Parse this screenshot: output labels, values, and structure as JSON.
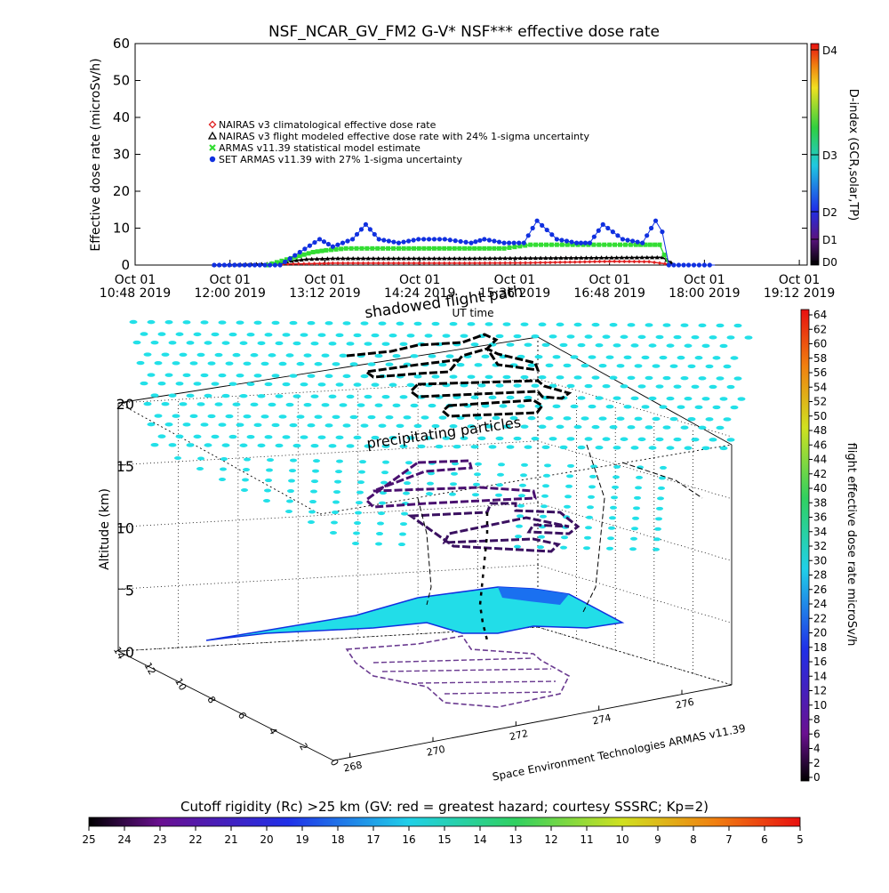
{
  "chart_data": [
    {
      "type": "scatter",
      "title": "NSF_NCAR_GV_FM2 G-V* NSF*** effective dose rate",
      "xlabel": "UT time",
      "ylabel": "Effective dose rate (microSv/h)",
      "ylim": [
        0,
        60
      ],
      "y_ticks": [
        "0",
        "10",
        "20",
        "30",
        "40",
        "50",
        "60"
      ],
      "xlim": [
        0,
        510
      ],
      "x_ticks": [
        {
          "t": 0,
          "l1": "Oct 01",
          "l2": "10:48 2019"
        },
        {
          "t": 72,
          "l1": "Oct 01",
          "l2": "12:00 2019"
        },
        {
          "t": 144,
          "l1": "Oct 01",
          "l2": "13:12 2019"
        },
        {
          "t": 216,
          "l1": "Oct 01",
          "l2": "14:24 2019"
        },
        {
          "t": 288,
          "l1": "Oct 01",
          "l2": "15:36 2019"
        },
        {
          "t": 360,
          "l1": "Oct 01",
          "l2": "16:48 2019"
        },
        {
          "t": 432,
          "l1": "Oct 01",
          "l2": "18:00 2019"
        },
        {
          "t": 504,
          "l1": "Oct 01",
          "l2": "19:12 2019"
        }
      ],
      "legend": [
        {
          "name": "NAIRAS v3 climatological effective dose rate",
          "color": "#e02020",
          "marker": "diamond"
        },
        {
          "name": "NAIRAS v3 flight modeled effective dose rate with 24% 1-sigma uncertainty",
          "color": "#000000",
          "marker": "triangle"
        },
        {
          "name": "ARMAS v11.39 statistical model estimate",
          "color": "#33dd33",
          "marker": "x"
        },
        {
          "name": "SET ARMAS v11.39 with 27% 1-sigma uncertainty",
          "color": "#1030e0",
          "marker": "dot"
        }
      ],
      "series": [
        {
          "name": "NAIRAS v3 climatological effective dose rate",
          "x": [
            60,
            120,
            140,
            150,
            200,
            250,
            300,
            330,
            360,
            390,
            410
          ],
          "y": [
            0,
            0.3,
            0.4,
            0.5,
            0.5,
            0.5,
            0.6,
            0.8,
            1.0,
            0.9,
            0
          ]
        },
        {
          "name": "NAIRAS v3 flight modeled effective dose rate with 24% 1-sigma uncertainty",
          "x": [
            60,
            100,
            115,
            130,
            150,
            200,
            250,
            300,
            350,
            400,
            410
          ],
          "y": [
            0,
            0.3,
            1.0,
            1.6,
            1.8,
            1.8,
            1.8,
            1.9,
            2.0,
            2.1,
            0
          ]
        },
        {
          "name": "ARMAS v11.39 statistical model estimate",
          "x": [
            100,
            115,
            125,
            135,
            145,
            160,
            200,
            250,
            280,
            300,
            340,
            380,
            398,
            405
          ],
          "y": [
            0,
            1.5,
            2.5,
            3.5,
            4.0,
            4.5,
            4.5,
            4.5,
            4.5,
            5.5,
            5.5,
            5.5,
            5.5,
            0
          ]
        },
        {
          "name": "SET ARMAS v11.39 with 27% 1-sigma uncertainty",
          "x": [
            60,
            110,
            140,
            150,
            165,
            175,
            185,
            200,
            215,
            235,
            255,
            265,
            280,
            295,
            305,
            320,
            335,
            345,
            355,
            370,
            385,
            395,
            400,
            405,
            420,
            440
          ],
          "y": [
            0,
            0,
            7,
            5,
            7,
            11,
            7,
            6,
            7,
            7,
            6,
            7,
            6,
            6,
            12,
            7,
            6,
            6,
            11,
            7,
            6,
            12,
            9,
            0,
            0,
            0
          ]
        }
      ],
      "right_axis": {
        "label": "D-index (GCR,solar,TP)",
        "ticks": [
          "D0",
          "D1",
          "D2",
          "D3",
          "D4"
        ]
      }
    },
    {
      "type": "heatmap",
      "title": "",
      "subtitle": "shadowed flight path",
      "annotations": [
        "precipitating particles",
        "Space Environment Technologies ARMAS v11.39"
      ],
      "zlabel": "Altitude (km)",
      "z_ticks": [
        "0",
        "5",
        "10",
        "15",
        "20"
      ],
      "x_ticks": [
        "268",
        "270",
        "272",
        "274",
        "276"
      ],
      "y_ticks": [
        "0",
        "2",
        "4",
        "6",
        "8",
        "10",
        "12",
        "14"
      ],
      "colorbar_right": {
        "label": "flight effective dose rate microSv/h",
        "ticks": [
          "0",
          "2",
          "4",
          "6",
          "8",
          "10",
          "12",
          "14",
          "16",
          "18",
          "20",
          "22",
          "24",
          "26",
          "28",
          "30",
          "32",
          "34",
          "36",
          "38",
          "40",
          "42",
          "44",
          "46",
          "48",
          "50",
          "52",
          "54",
          "56",
          "58",
          "60",
          "62",
          "64"
        ]
      },
      "colorbar_bottom": {
        "label": "Cutoff rigidity (Rc) >25 km (GV: red = greatest hazard; courtesy SSSRC; Kp=2)",
        "ticks": [
          "25",
          "24",
          "23",
          "22",
          "21",
          "20",
          "19",
          "18",
          "17",
          "16",
          "15",
          "14",
          "13",
          "12",
          "11",
          "10",
          "9",
          "8",
          "7",
          "6",
          "5"
        ]
      }
    }
  ]
}
